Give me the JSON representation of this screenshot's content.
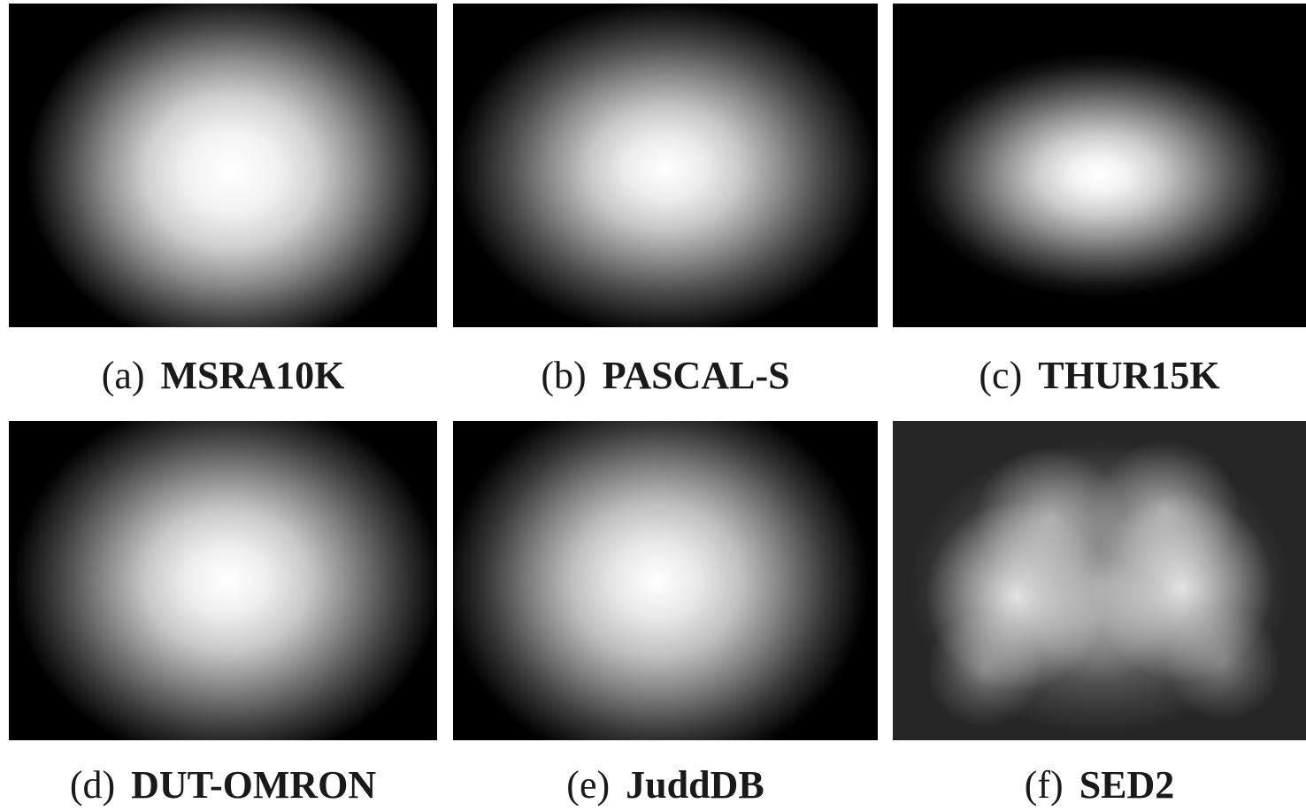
{
  "panels": [
    {
      "id": "a",
      "tag": "(a)",
      "name": "MSRA10K"
    },
    {
      "id": "b",
      "tag": "(b)",
      "name": "PASCAL-S"
    },
    {
      "id": "c",
      "tag": "(c)",
      "name": "THUR15K"
    },
    {
      "id": "d",
      "tag": "(d)",
      "name": "DUT-OMRON"
    },
    {
      "id": "e",
      "tag": "(e)",
      "name": "JuddDB"
    },
    {
      "id": "f",
      "tag": "(f)",
      "name": "SED2"
    }
  ]
}
